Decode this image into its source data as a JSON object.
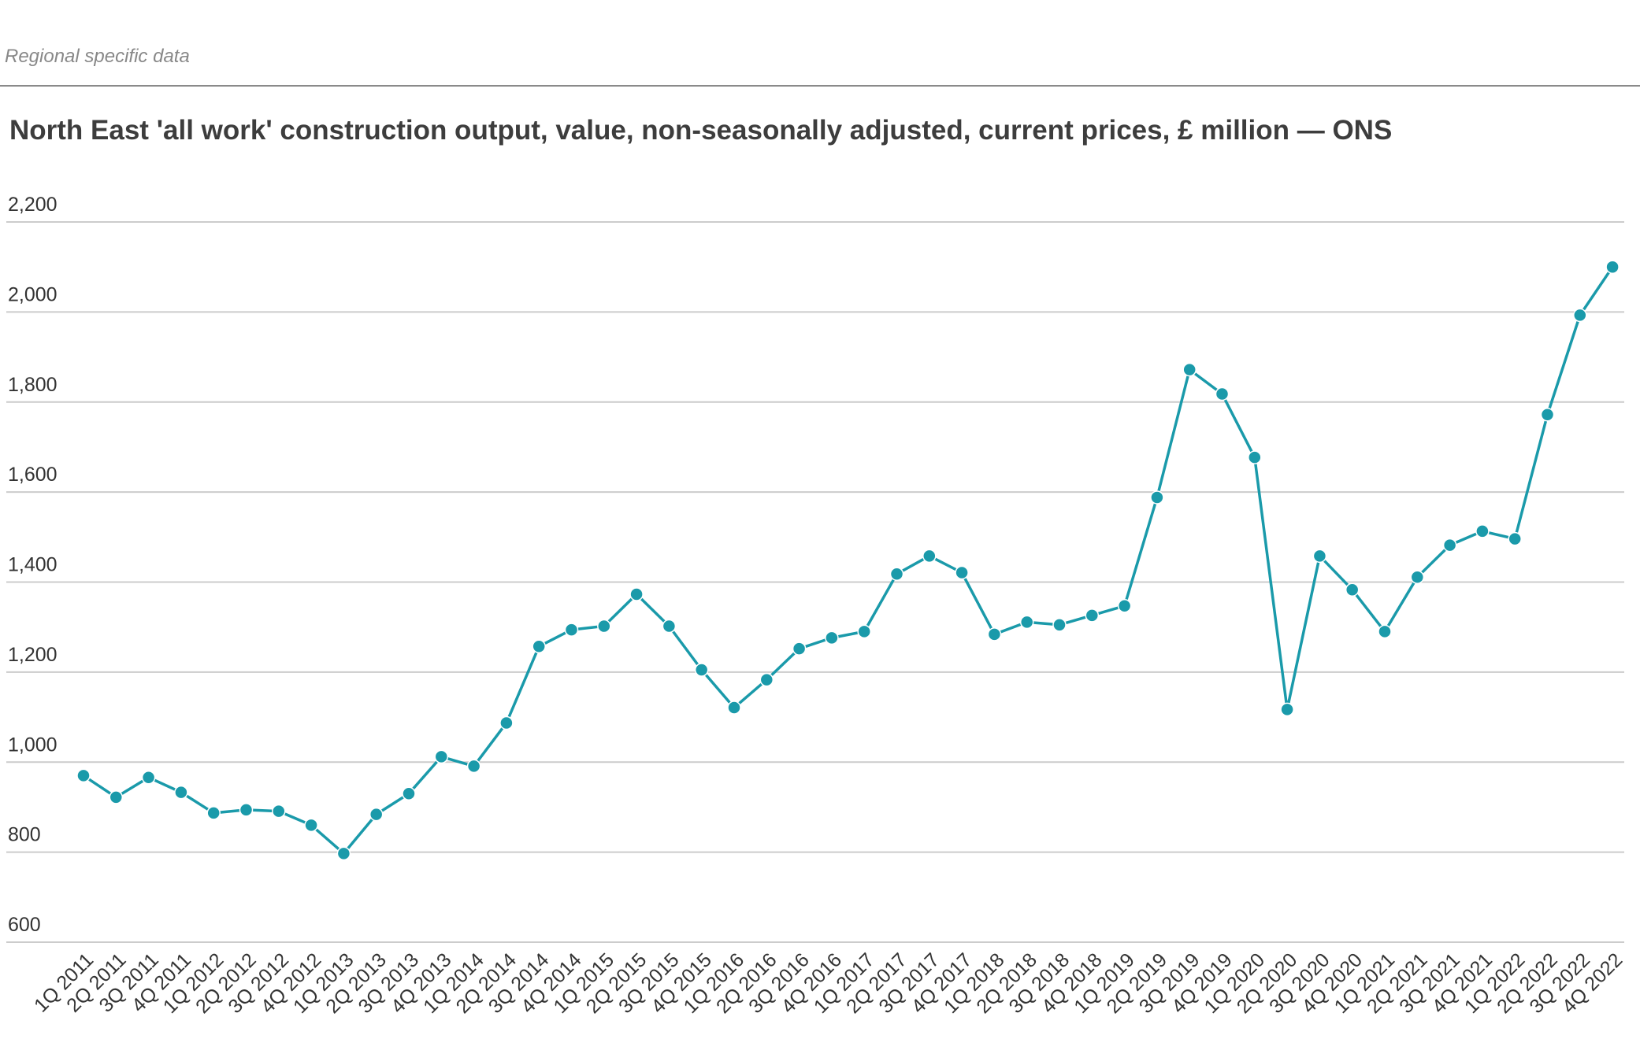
{
  "header": {
    "eyebrow": "Regional specific data",
    "title": "North East 'all work' construction output, value, non-seasonally adjusted, current prices, £ million — ONS"
  },
  "colors": {
    "line": "#1a9aaa",
    "grid": "#cccccc",
    "rule": "#8a8a8a",
    "text": "#333333"
  },
  "chart_data": {
    "type": "line",
    "title": "North East 'all work' construction output, value, non-seasonally adjusted, current prices, £ million — ONS",
    "xlabel": "",
    "ylabel": "",
    "ylim": [
      600,
      2200
    ],
    "yticks": [
      600,
      800,
      1000,
      1200,
      1400,
      1600,
      1800,
      2000,
      2200
    ],
    "ytick_labels": [
      "600",
      "800",
      "1,000",
      "1,200",
      "1,400",
      "1,600",
      "1,800",
      "2,000",
      "2,200"
    ],
    "grid": true,
    "legend": "none",
    "markers": true,
    "categories": [
      "1Q 2011",
      "2Q 2011",
      "3Q 2011",
      "4Q 2011",
      "1Q 2012",
      "2Q 2012",
      "3Q 2012",
      "4Q 2012",
      "1Q 2013",
      "2Q 2013",
      "3Q 2013",
      "4Q 2013",
      "1Q 2014",
      "2Q 2014",
      "3Q 2014",
      "4Q 2014",
      "1Q 2015",
      "2Q 2015",
      "3Q 2015",
      "4Q 2015",
      "1Q 2016",
      "2Q 2016",
      "3Q 2016",
      "4Q 2016",
      "1Q 2017",
      "2Q 2017",
      "3Q 2017",
      "4Q 2017",
      "1Q 2018",
      "2Q 2018",
      "3Q 2018",
      "4Q 2018",
      "1Q 2019",
      "2Q 2019",
      "3Q 2019",
      "4Q 2019",
      "1Q 2020",
      "2Q 2020",
      "3Q 2020",
      "4Q 2020",
      "1Q 2021",
      "2Q 2021",
      "3Q 2021",
      "4Q 2021",
      "1Q 2022",
      "2Q 2022",
      "3Q 2022",
      "4Q 2022"
    ],
    "series": [
      {
        "values": [
          970,
          922,
          966,
          933,
          887,
          894,
          891,
          860,
          797,
          884,
          930,
          1012,
          991,
          1087,
          1257,
          1294,
          1302,
          1373,
          1302,
          1205,
          1121,
          1183,
          1252,
          1276,
          1290,
          1418,
          1458,
          1421,
          1284,
          1311,
          1305,
          1326,
          1347,
          1588,
          1872,
          1818,
          1677,
          1117,
          1458,
          1383,
          1290,
          1411,
          1482,
          1513,
          1496,
          1772,
          1993,
          2100
        ]
      }
    ]
  }
}
